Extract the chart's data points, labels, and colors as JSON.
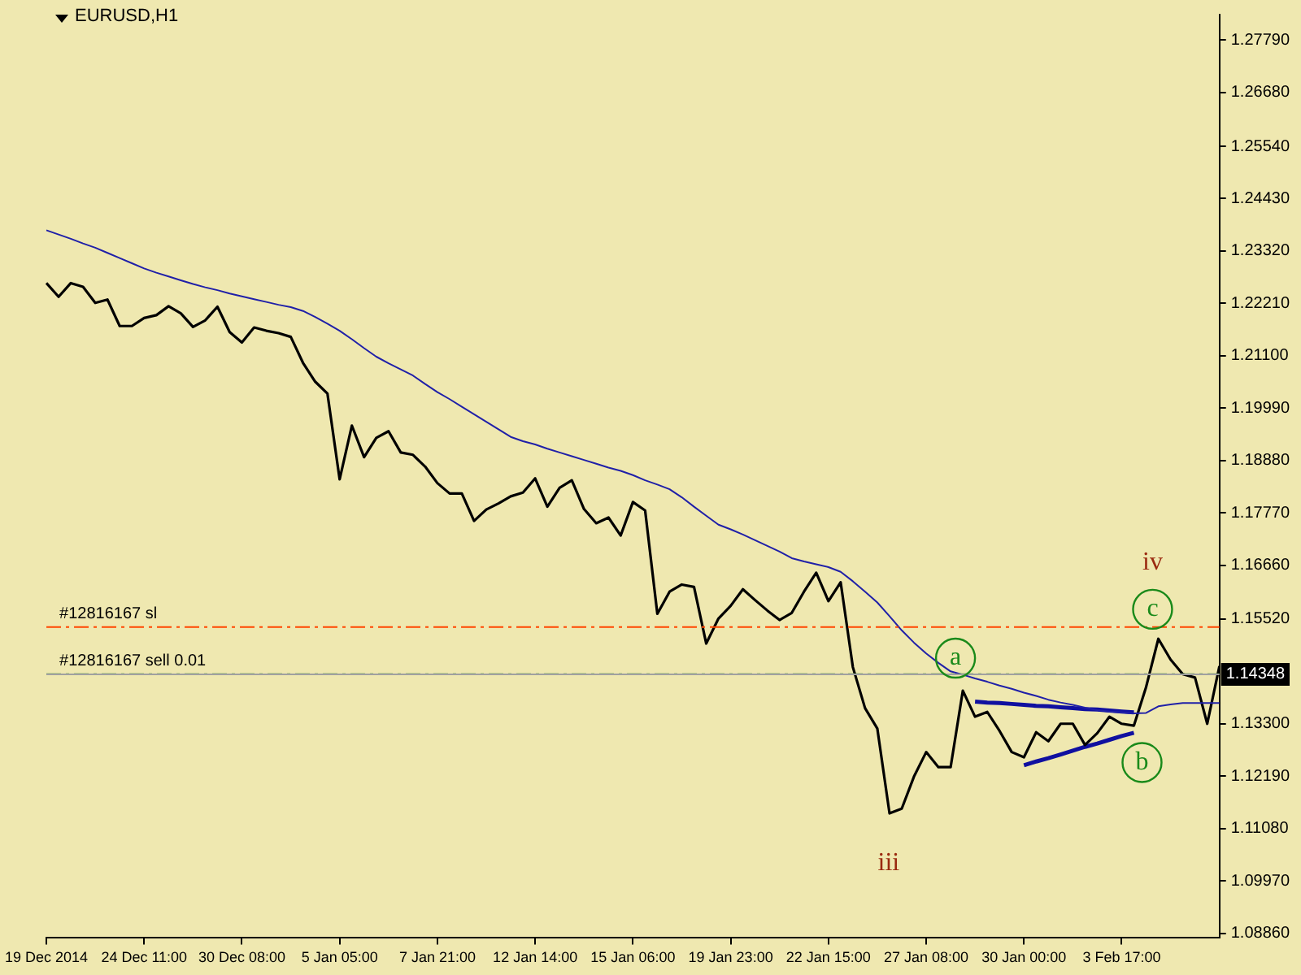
{
  "chart_data": {
    "type": "line",
    "title": "EURUSD,H1",
    "categories": [
      "19 Dec 2014",
      null,
      null,
      null,
      null,
      null,
      null,
      null,
      "24 Dec 11:00",
      null,
      null,
      null,
      null,
      null,
      null,
      null,
      "30 Dec 08:00",
      null,
      null,
      null,
      null,
      null,
      null,
      null,
      "5 Jan 05:00",
      null,
      null,
      null,
      null,
      null,
      null,
      null,
      "7 Jan 21:00",
      null,
      null,
      null,
      null,
      null,
      null,
      null,
      "12 Jan 14:00",
      null,
      null,
      null,
      null,
      null,
      null,
      null,
      "15 Jan 06:00",
      null,
      null,
      null,
      null,
      null,
      null,
      null,
      "19 Jan 23:00",
      null,
      null,
      null,
      null,
      null,
      null,
      null,
      "22 Jan 15:00",
      null,
      null,
      null,
      null,
      null,
      null,
      null,
      "27 Jan 08:00",
      null,
      null,
      null,
      null,
      null,
      null,
      null,
      "30 Jan 00:00",
      null,
      null,
      null,
      null,
      null,
      null,
      null,
      "3 Feb 17:00",
      null,
      null,
      null,
      null,
      null,
      null,
      null,
      null
    ],
    "ylim": [
      1.0876,
      1.2833
    ],
    "yticks": [
      {
        "value": 1.0886,
        "label": "1.08860"
      },
      {
        "value": 1.0997,
        "label": "1.09970"
      },
      {
        "value": 1.1108,
        "label": "1.11080"
      },
      {
        "value": 1.1219,
        "label": "1.12190"
      },
      {
        "value": 1.133,
        "label": "1.13300"
      },
      {
        "value": 1.1552,
        "label": "1.15520"
      },
      {
        "value": 1.1666,
        "label": "1.16660"
      },
      {
        "value": 1.1777,
        "label": "1.17770"
      },
      {
        "value": 1.1888,
        "label": "1.18880"
      },
      {
        "value": 1.1999,
        "label": "1.19990"
      },
      {
        "value": 1.211,
        "label": "1.21100"
      },
      {
        "value": 1.2221,
        "label": "1.22210"
      },
      {
        "value": 1.2332,
        "label": "1.23320"
      },
      {
        "value": 1.2443,
        "label": "1.24430"
      },
      {
        "value": 1.2554,
        "label": "1.25540"
      },
      {
        "value": 1.2668,
        "label": "1.26680"
      },
      {
        "value": 1.2779,
        "label": "1.27790"
      }
    ],
    "grid": false,
    "legend": false,
    "marker": "none",
    "series": [
      {
        "color": "#2020a8",
        "values": [
          1.2376,
          1.2367,
          1.2358,
          1.2348,
          1.2339,
          1.2328,
          1.2317,
          1.2306,
          1.2295,
          1.2286,
          1.2278,
          1.227,
          1.2262,
          1.2255,
          1.2249,
          1.2242,
          1.2236,
          1.223,
          1.2224,
          1.2218,
          1.2213,
          1.2205,
          1.2192,
          1.2178,
          1.2163,
          1.2145,
          1.2126,
          1.2108,
          1.2094,
          1.2081,
          1.2068,
          1.205,
          1.2033,
          1.2018,
          1.2002,
          1.1986,
          1.197,
          1.1954,
          1.1938,
          1.1929,
          1.1922,
          1.1913,
          1.1905,
          1.1897,
          1.1889,
          1.1881,
          1.1873,
          1.1866,
          1.1857,
          1.1846,
          1.1837,
          1.1827,
          1.181,
          1.179,
          1.1771,
          1.1752,
          1.1742,
          1.1731,
          1.1719,
          1.1707,
          1.1695,
          1.1681,
          1.1674,
          1.1668,
          1.1662,
          1.1652,
          1.1632,
          1.161,
          1.1587,
          1.1558,
          1.1528,
          1.1502,
          1.1479,
          1.1459,
          1.1441,
          1.1434,
          1.1426,
          1.1419,
          1.1411,
          1.1404,
          1.1396,
          1.1389,
          1.1381,
          1.1375,
          1.137,
          1.1364,
          1.1359,
          1.1356,
          1.1354,
          1.1352,
          1.1353,
          1.1367,
          1.1371,
          1.1374,
          1.1374,
          1.1374,
          1.1374
        ]
      },
      {
        "color": "#000000",
        "values": [
          1.2264,
          1.2235,
          1.2264,
          1.2256,
          1.2222,
          1.2229,
          1.2173,
          1.2173,
          1.219,
          1.2196,
          1.2215,
          1.22,
          1.2171,
          1.2185,
          1.2214,
          1.216,
          1.2138,
          1.217,
          1.2163,
          1.2158,
          1.215,
          1.2095,
          1.2055,
          1.203,
          1.1848,
          1.1962,
          1.1895,
          1.1936,
          1.195,
          1.1905,
          1.19,
          1.1875,
          1.184,
          1.1818,
          1.1818,
          1.176,
          1.1784,
          1.1797,
          1.1812,
          1.182,
          1.185,
          1.179,
          1.183,
          1.1846,
          1.1785,
          1.1755,
          1.1767,
          1.1729,
          1.18,
          1.1782,
          1.1563,
          1.161,
          1.1625,
          1.162,
          1.15,
          1.1553,
          1.158,
          1.1615,
          1.1592,
          1.157,
          1.155,
          1.1565,
          1.161,
          1.165,
          1.159,
          1.163,
          1.145,
          1.1363,
          1.132,
          1.114,
          1.115,
          1.1218,
          1.127,
          1.1238,
          1.1238,
          1.14,
          1.1345,
          1.1355,
          1.1315,
          1.127,
          1.1259,
          1.1312,
          1.1293,
          1.133,
          1.133,
          1.1285,
          1.131,
          1.1345,
          1.133,
          1.1326,
          1.1408,
          1.151,
          1.1466,
          1.1435,
          1.1428,
          1.133,
          1.1452
        ]
      },
      {
        "color": "#1010a0",
        "values": [
          null,
          null,
          null,
          null,
          null,
          null,
          null,
          null,
          null,
          null,
          null,
          null,
          null,
          null,
          null,
          null,
          null,
          null,
          null,
          null,
          null,
          null,
          null,
          null,
          null,
          null,
          null,
          null,
          null,
          null,
          null,
          null,
          null,
          null,
          null,
          null,
          null,
          null,
          null,
          null,
          null,
          null,
          null,
          null,
          null,
          null,
          null,
          null,
          null,
          null,
          null,
          null,
          null,
          null,
          null,
          null,
          null,
          null,
          null,
          null,
          null,
          null,
          null,
          null,
          null,
          null,
          null,
          null,
          null,
          null,
          null,
          null,
          null,
          null,
          null,
          null,
          1.1377,
          1.1375,
          1.1374,
          1.1372,
          1.137,
          1.1368,
          1.1367,
          1.1365,
          1.1363,
          1.1361,
          1.136,
          1.1358,
          1.1356,
          1.1354,
          null,
          null,
          null,
          null,
          null,
          null,
          null
        ]
      },
      {
        "color": "#1010a0",
        "values": [
          null,
          null,
          null,
          null,
          null,
          null,
          null,
          null,
          null,
          null,
          null,
          null,
          null,
          null,
          null,
          null,
          null,
          null,
          null,
          null,
          null,
          null,
          null,
          null,
          null,
          null,
          null,
          null,
          null,
          null,
          null,
          null,
          null,
          null,
          null,
          null,
          null,
          null,
          null,
          null,
          null,
          null,
          null,
          null,
          null,
          null,
          null,
          null,
          null,
          null,
          null,
          null,
          null,
          null,
          null,
          null,
          null,
          null,
          null,
          null,
          null,
          null,
          null,
          null,
          null,
          null,
          null,
          null,
          null,
          null,
          null,
          null,
          null,
          null,
          null,
          null,
          null,
          null,
          null,
          null,
          1.1242,
          1.125,
          1.1257,
          1.1265,
          1.1273,
          1.1281,
          1.1288,
          1.1296,
          1.1304,
          1.1311,
          null,
          null,
          null,
          null,
          null,
          null,
          null
        ]
      }
    ],
    "ref_lines": [
      {
        "axis": "y",
        "value": 1.1535,
        "label": "#12816167 sl",
        "color": "#ff4500",
        "line_style": "dashed"
      },
      {
        "axis": "y",
        "value": 1.1435,
        "label": "#12816167 sell 0.01",
        "color": "#1e7b1e",
        "line_style": "dashed"
      },
      {
        "axis": "y",
        "value": 1.14348,
        "label": "1.14348",
        "color": "#a0a0a0",
        "line_style": "solid"
      }
    ],
    "annotations": [
      "a",
      "b",
      "c",
      "iii",
      "iv"
    ]
  }
}
